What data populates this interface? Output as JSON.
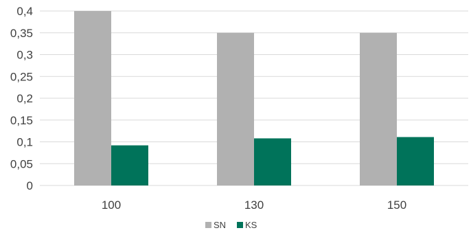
{
  "chart_data": {
    "type": "bar",
    "title": "",
    "xlabel": "",
    "ylabel": "",
    "categories": [
      "100",
      "130",
      "150"
    ],
    "series": [
      {
        "name": "SN",
        "values": [
          0.4,
          0.35,
          0.35
        ],
        "color": "#b1b1b1"
      },
      {
        "name": "KS",
        "values": [
          0.092,
          0.108,
          0.111
        ],
        "color": "#00735a"
      }
    ],
    "ylim": [
      0,
      0.4
    ],
    "yticks": [
      "0",
      "0,05",
      "0,1",
      "0,15",
      "0,2",
      "0,25",
      "0,3",
      "0,35",
      "0,4"
    ],
    "ytick_values": [
      0,
      0.05,
      0.1,
      0.15,
      0.2,
      0.25,
      0.3,
      0.35,
      0.4
    ],
    "grid": true,
    "legend_position": "bottom-center"
  }
}
